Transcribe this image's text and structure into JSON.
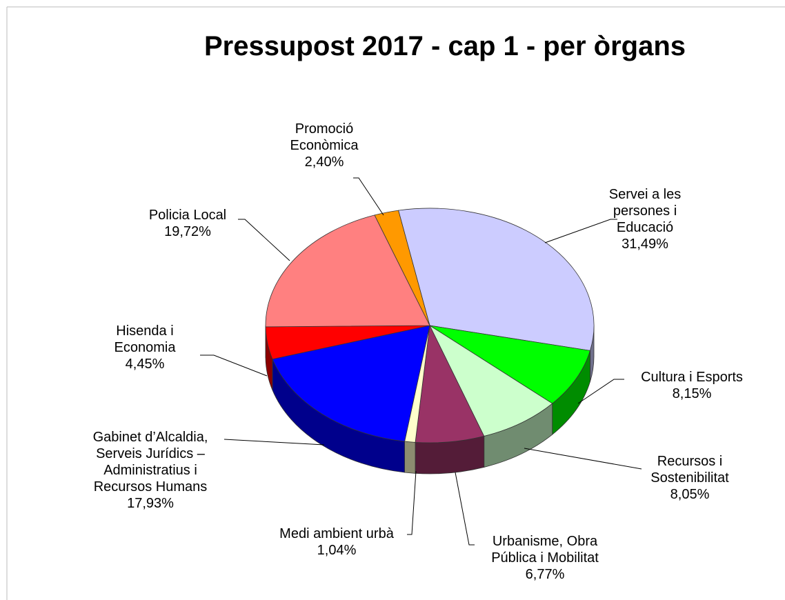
{
  "chart_data": {
    "type": "pie",
    "title": "Pressupost 2017 - cap 1 - per òrgans",
    "categories": [
      "Servei a les persones i Educació",
      "Cultura i Esports",
      "Recursos i Sostenibilitat",
      "Urbanisme, Obra Pública i Mobilitat",
      "Medi ambient urbà",
      "Gabinet d’Alcaldia, Serveis Jurídics – Administratius i Recursos Humans",
      "Hisenda i Economia",
      "Policia Local",
      "Promoció Econòmica"
    ],
    "values": [
      31.49,
      8.15,
      8.05,
      6.77,
      1.04,
      17.93,
      4.45,
      19.72,
      2.4
    ],
    "value_labels": [
      "31,49%",
      "8,15%",
      "8,05%",
      "6,77%",
      "1,04%",
      "17,93%",
      "4,45%",
      "19,72%",
      "2,40%"
    ],
    "colors": [
      "#ccccff",
      "#00ff00",
      "#ccffcc",
      "#993366",
      "#ffffcc",
      "#0000ff",
      "#ff0000",
      "#ff8080",
      "#ff9900"
    ]
  }
}
